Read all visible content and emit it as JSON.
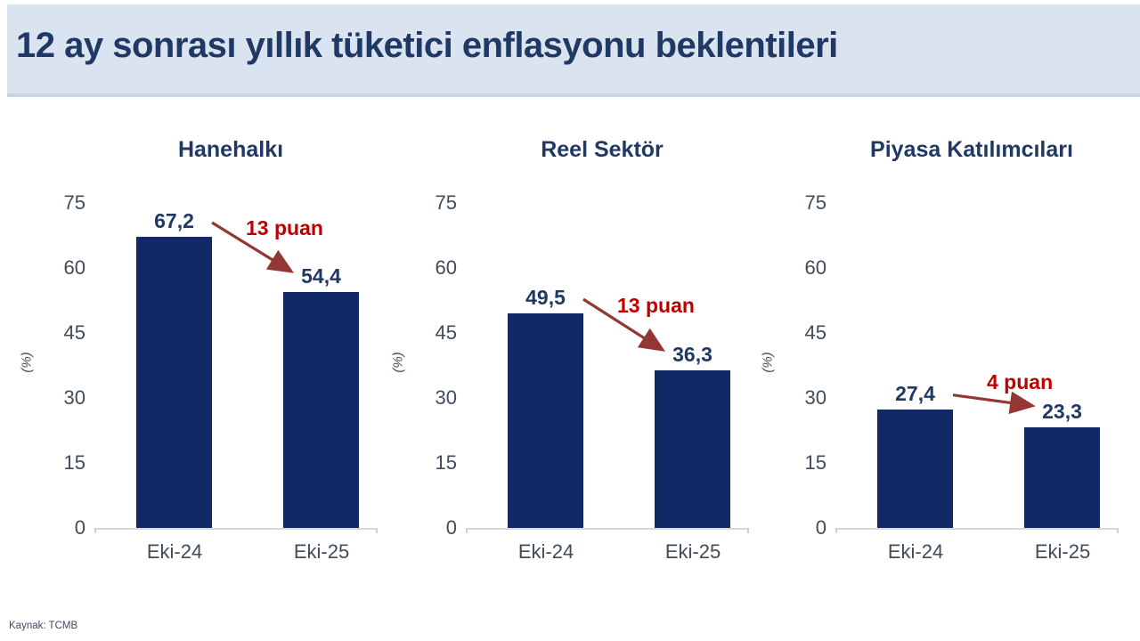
{
  "header": {
    "title": "12 ay sonrası yıllık tüketici enflasyonu beklentileri"
  },
  "axis": {
    "tick_labels": [
      "75",
      "60",
      "45",
      "30",
      "15",
      "0"
    ]
  },
  "colors": {
    "header_bg": "#dae3f0",
    "title_navy": "#1f3864",
    "bar_navy": "#112a66",
    "annotation_red": "#c00000",
    "arrow_red": "#943634",
    "axis_gray": "#d8d8d8"
  },
  "chart_data": [
    {
      "type": "bar",
      "title": "Hanehalkı",
      "categories": [
        "Eki-24",
        "Eki-25"
      ],
      "values": [
        67.2,
        54.4
      ],
      "value_labels": [
        "67,2",
        "54,4"
      ],
      "annotation": "13 puan",
      "ylabel": "(%)",
      "ylim": [
        0,
        75
      ],
      "yticks": [
        0,
        15,
        30,
        45,
        60,
        75
      ],
      "grid": false,
      "legend": "none"
    },
    {
      "type": "bar",
      "title": "Reel Sektör",
      "categories": [
        "Eki-24",
        "Eki-25"
      ],
      "values": [
        49.5,
        36.3
      ],
      "value_labels": [
        "49,5",
        "36,3"
      ],
      "annotation": "13 puan",
      "ylabel": "(%)",
      "ylim": [
        0,
        75
      ],
      "yticks": [
        0,
        15,
        30,
        45,
        60,
        75
      ],
      "grid": false,
      "legend": "none"
    },
    {
      "type": "bar",
      "title": "Piyasa Katılımcıları",
      "categories": [
        "Eki-24",
        "Eki-25"
      ],
      "values": [
        27.4,
        23.3
      ],
      "value_labels": [
        "27,4",
        "23,3"
      ],
      "annotation": "4 puan",
      "ylabel": "(%)",
      "ylim": [
        0,
        75
      ],
      "yticks": [
        0,
        15,
        30,
        45,
        60,
        75
      ],
      "grid": false,
      "legend": "none"
    }
  ],
  "footer": {
    "source": "Kaynak: TCMB"
  }
}
